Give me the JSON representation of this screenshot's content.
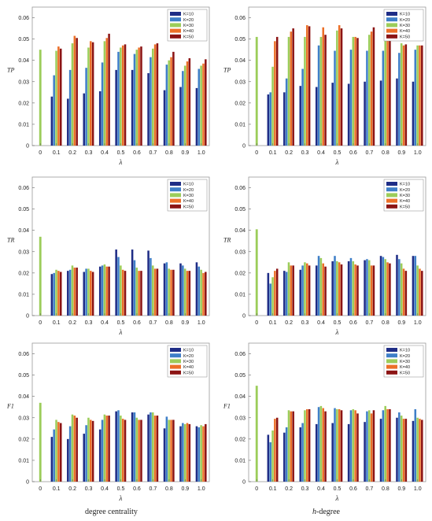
{
  "colors": [
    "#1f2d86",
    "#3f7fc8",
    "#9ccd5a",
    "#ec7028",
    "#8c1414"
  ],
  "captions": {
    "left": "degree centrality",
    "right_italic": "h",
    "right_rest": "-degree"
  },
  "chart_data": [
    {
      "type": "bar",
      "ylabel": "TP",
      "xlabel": "λ",
      "categories": [
        "0",
        "0.1",
        "0.2",
        "0.3",
        "0.4",
        "0.5",
        "0.6",
        "0.7",
        "0.8",
        "0.9",
        "1.0"
      ],
      "ylim": [
        0,
        0.065
      ],
      "yticks": [
        "0",
        "0.01",
        "0.02",
        "0.03",
        "0.04",
        "0.05",
        "0.06"
      ],
      "legend": "top-right",
      "single_value_at_zero": 0.045,
      "series": [
        {
          "name": "K=10",
          "values": [
            null,
            0.023,
            0.022,
            0.0245,
            0.0255,
            0.0355,
            0.0355,
            0.034,
            0.026,
            0.0275,
            0.027
          ]
        },
        {
          "name": "K=20",
          "values": [
            null,
            0.033,
            0.0355,
            0.0365,
            0.039,
            0.044,
            0.043,
            0.0415,
            0.038,
            0.035,
            0.036
          ]
        },
        {
          "name": "K=30",
          "values": [
            null,
            0.0445,
            0.048,
            0.046,
            0.049,
            0.046,
            0.045,
            0.0455,
            0.04,
            0.0375,
            0.0375
          ]
        },
        {
          "name": "K=40",
          "values": [
            null,
            0.0465,
            0.0515,
            0.049,
            0.0505,
            0.047,
            0.046,
            0.0475,
            0.0415,
            0.0395,
            0.0385
          ]
        },
        {
          "name": "K=50",
          "values": [
            null,
            0.0455,
            0.0505,
            0.0485,
            0.0525,
            0.0475,
            0.0465,
            0.048,
            0.044,
            0.041,
            0.0405
          ]
        }
      ]
    },
    {
      "type": "bar",
      "ylabel": "TP",
      "xlabel": "λ",
      "categories": [
        "0",
        "0.1",
        "0.2",
        "0.3",
        "0.4",
        "0.5",
        "0.6",
        "0.7",
        "0.8",
        "0.9",
        "1.0"
      ],
      "ylim": [
        0,
        0.065
      ],
      "yticks": [
        "0",
        "0.01",
        "0.02",
        "0.03",
        "0.04",
        "0.05",
        "0.06"
      ],
      "legend": "top-right",
      "single_value_at_zero": 0.051,
      "series": [
        {
          "name": "K=10",
          "values": [
            null,
            0.024,
            0.025,
            0.028,
            0.0275,
            0.0295,
            0.029,
            0.03,
            0.0305,
            0.0315,
            0.03
          ]
        },
        {
          "name": "K=20",
          "values": [
            null,
            0.025,
            0.0315,
            0.036,
            0.047,
            0.0445,
            0.045,
            0.0445,
            0.0445,
            0.0435,
            0.045
          ]
        },
        {
          "name": "K=30",
          "values": [
            null,
            0.037,
            0.051,
            0.051,
            0.051,
            0.054,
            0.051,
            0.052,
            0.0535,
            0.048,
            0.047
          ]
        },
        {
          "name": "K=40",
          "values": [
            null,
            0.049,
            0.0535,
            0.0565,
            0.0555,
            0.0565,
            0.051,
            0.0535,
            0.055,
            0.047,
            0.047
          ]
        },
        {
          "name": "K=50",
          "values": [
            null,
            0.051,
            0.055,
            0.056,
            0.052,
            0.055,
            0.0505,
            0.0555,
            0.056,
            0.0475,
            0.047
          ]
        }
      ]
    },
    {
      "type": "bar",
      "ylabel": "TR",
      "xlabel": "λ",
      "categories": [
        "0",
        "0.1",
        "0.2",
        "0.3",
        "0.4",
        "0.5",
        "0.6",
        "0.7",
        "0.8",
        "0.9",
        "1.0"
      ],
      "ylim": [
        0,
        0.065
      ],
      "yticks": [
        "0",
        "0.01",
        "0.02",
        "0.03",
        "0.04",
        "0.05",
        "0.06"
      ],
      "legend": "top-right",
      "single_value_at_zero": 0.037,
      "series": [
        {
          "name": "K=10",
          "values": [
            null,
            0.0195,
            0.021,
            0.0205,
            0.023,
            0.031,
            0.031,
            0.0305,
            0.0245,
            0.0245,
            0.025
          ]
        },
        {
          "name": "K=20",
          "values": [
            null,
            0.02,
            0.0215,
            0.022,
            0.0235,
            0.0275,
            0.026,
            0.027,
            0.025,
            0.0235,
            0.023
          ]
        },
        {
          "name": "K=30",
          "values": [
            null,
            0.0215,
            0.0235,
            0.022,
            0.024,
            0.0235,
            0.0225,
            0.0235,
            0.022,
            0.022,
            0.0215
          ]
        },
        {
          "name": "K=40",
          "values": [
            null,
            0.021,
            0.0225,
            0.021,
            0.023,
            0.0215,
            0.021,
            0.022,
            0.0215,
            0.021,
            0.02
          ]
        },
        {
          "name": "K=50",
          "values": [
            null,
            0.0205,
            0.0225,
            0.0205,
            0.023,
            0.021,
            0.021,
            0.022,
            0.0215,
            0.021,
            0.0205
          ]
        }
      ]
    },
    {
      "type": "bar",
      "ylabel": "TR",
      "xlabel": "λ",
      "categories": [
        "0",
        "0.1",
        "0.2",
        "0.3",
        "0.4",
        "0.5",
        "0.6",
        "0.7",
        "0.8",
        "0.9",
        "1.0"
      ],
      "ylim": [
        0,
        0.065
      ],
      "yticks": [
        "0",
        "0.01",
        "0.02",
        "0.03",
        "0.04",
        "0.05",
        "0.06"
      ],
      "legend": "top-right",
      "single_value_at_zero": 0.0405,
      "series": [
        {
          "name": "K=10",
          "values": [
            null,
            0.02,
            0.021,
            0.0215,
            0.0235,
            0.0255,
            0.0255,
            0.026,
            0.028,
            0.0285,
            0.028
          ]
        },
        {
          "name": "K=20",
          "values": [
            null,
            0.015,
            0.0205,
            0.0235,
            0.028,
            0.028,
            0.027,
            0.0265,
            0.0275,
            0.0265,
            0.028
          ]
        },
        {
          "name": "K=30",
          "values": [
            null,
            0.018,
            0.025,
            0.025,
            0.027,
            0.0255,
            0.0255,
            0.026,
            0.0265,
            0.0245,
            0.0235
          ]
        },
        {
          "name": "K=40",
          "values": [
            null,
            0.021,
            0.0235,
            0.0245,
            0.0245,
            0.025,
            0.024,
            0.0235,
            0.025,
            0.022,
            0.022
          ]
        },
        {
          "name": "K=50",
          "values": [
            null,
            0.022,
            0.0235,
            0.0235,
            0.023,
            0.024,
            0.0235,
            0.0235,
            0.0245,
            0.021,
            0.021
          ]
        }
      ]
    },
    {
      "type": "bar",
      "ylabel": "F1",
      "xlabel": "λ",
      "categories": [
        "0",
        "0.1",
        "0.2",
        "0.3",
        "0.4",
        "0.5",
        "0.6",
        "0.7",
        "0.8",
        "0.9",
        "1.0"
      ],
      "ylim": [
        0,
        0.065
      ],
      "yticks": [
        "0",
        "0.01",
        "0.02",
        "0.03",
        "0.04",
        "0.05",
        "0.06"
      ],
      "legend": "top-right",
      "single_value_at_zero": 0.037,
      "series": [
        {
          "name": "K=10",
          "values": [
            null,
            0.021,
            0.02,
            0.0225,
            0.0245,
            0.033,
            0.0325,
            0.0315,
            0.025,
            0.026,
            0.026
          ]
        },
        {
          "name": "K=20",
          "values": [
            null,
            0.0245,
            0.026,
            0.0265,
            0.029,
            0.0335,
            0.0325,
            0.0325,
            0.0305,
            0.0275,
            0.0255
          ]
        },
        {
          "name": "K=30",
          "values": [
            null,
            0.029,
            0.0315,
            0.03,
            0.0315,
            0.031,
            0.03,
            0.0325,
            0.029,
            0.027,
            0.0265
          ]
        },
        {
          "name": "K=40",
          "values": [
            null,
            0.028,
            0.031,
            0.029,
            0.031,
            0.0295,
            0.029,
            0.031,
            0.029,
            0.0275,
            0.026
          ]
        },
        {
          "name": "K=50",
          "values": [
            null,
            0.0275,
            0.03,
            0.0285,
            0.031,
            0.029,
            0.029,
            0.031,
            0.029,
            0.027,
            0.027
          ]
        }
      ]
    },
    {
      "type": "bar",
      "ylabel": "F1",
      "xlabel": "λ",
      "categories": [
        "0",
        "0.1",
        "0.2",
        "0.3",
        "0.4",
        "0.5",
        "0.6",
        "0.7",
        "0.8",
        "0.9",
        "1.0"
      ],
      "ylim": [
        0,
        0.065
      ],
      "yticks": [
        "0",
        "0.01",
        "0.02",
        "0.03",
        "0.04",
        "0.05",
        "0.06"
      ],
      "legend": "top-right",
      "single_value_at_zero": 0.045,
      "series": [
        {
          "name": "K=10",
          "values": [
            null,
            0.022,
            0.023,
            0.0255,
            0.027,
            0.0275,
            0.027,
            0.028,
            0.0295,
            0.03,
            0.0285
          ]
        },
        {
          "name": "K=20",
          "values": [
            null,
            0.0185,
            0.0255,
            0.0275,
            0.035,
            0.0345,
            0.0335,
            0.033,
            0.0335,
            0.0325,
            0.034
          ]
        },
        {
          "name": "K=30",
          "values": [
            null,
            0.024,
            0.0335,
            0.0335,
            0.0355,
            0.034,
            0.034,
            0.0335,
            0.0355,
            0.031,
            0.03
          ]
        },
        {
          "name": "K=40",
          "values": [
            null,
            0.0295,
            0.033,
            0.034,
            0.0345,
            0.034,
            0.0335,
            0.032,
            0.034,
            0.0295,
            0.0295
          ]
        },
        {
          "name": "K=50",
          "values": [
            null,
            0.03,
            0.033,
            0.034,
            0.033,
            0.0335,
            0.032,
            0.0335,
            0.034,
            0.0295,
            0.029
          ]
        }
      ]
    }
  ]
}
